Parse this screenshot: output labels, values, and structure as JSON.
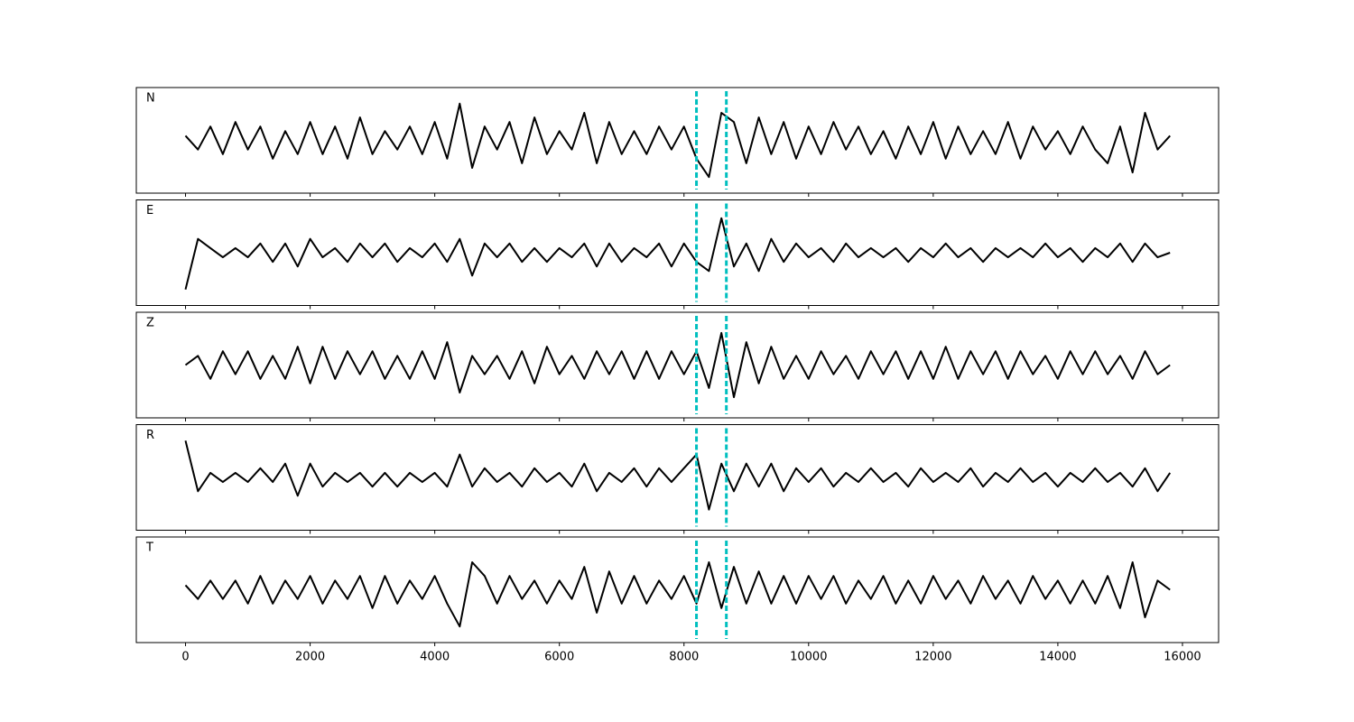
{
  "chart_data": {
    "type": "line",
    "subplots": true,
    "x": [
      0,
      200,
      400,
      600,
      800,
      1000,
      1200,
      1400,
      1600,
      1800,
      2000,
      2200,
      2400,
      2600,
      2800,
      3000,
      3200,
      3400,
      3600,
      3800,
      4000,
      4200,
      4400,
      4600,
      4800,
      5000,
      5200,
      5400,
      5600,
      5800,
      6000,
      6200,
      6400,
      6600,
      6800,
      7000,
      7200,
      7400,
      7600,
      7800,
      8000,
      8200,
      8400,
      8600,
      8800,
      9000,
      9200,
      9400,
      9600,
      9800,
      10000,
      10200,
      10400,
      10600,
      10800,
      11000,
      11200,
      11400,
      11600,
      11800,
      12000,
      12200,
      12400,
      12600,
      12800,
      13000,
      13200,
      13400,
      13600,
      13800,
      14000,
      14200,
      14400,
      14600,
      14800,
      15000,
      15200,
      15400,
      15600,
      15800
    ],
    "series": [
      {
        "name": "N",
        "color": "#000000",
        "values": [
          0.1,
          -0.2,
          0.3,
          -0.3,
          0.4,
          -0.2,
          0.3,
          -0.4,
          0.2,
          -0.3,
          0.4,
          -0.3,
          0.3,
          -0.4,
          0.5,
          -0.3,
          0.2,
          -0.2,
          0.3,
          -0.3,
          0.4,
          -0.4,
          0.8,
          -0.6,
          0.3,
          -0.2,
          0.4,
          -0.5,
          0.5,
          -0.3,
          0.2,
          -0.2,
          0.6,
          -0.5,
          0.4,
          -0.3,
          0.2,
          -0.3,
          0.3,
          -0.2,
          0.3,
          -0.4,
          -0.8,
          0.6,
          0.4,
          -0.5,
          0.5,
          -0.3,
          0.4,
          -0.4,
          0.3,
          -0.3,
          0.4,
          -0.2,
          0.3,
          -0.3,
          0.2,
          -0.4,
          0.3,
          -0.3,
          0.4,
          -0.4,
          0.3,
          -0.3,
          0.2,
          -0.3,
          0.4,
          -0.4,
          0.3,
          -0.2,
          0.2,
          -0.3,
          0.3,
          -0.2,
          -0.5,
          0.3,
          -0.7,
          0.6,
          -0.2,
          0.1
        ]
      },
      {
        "name": "E",
        "color": "#000000",
        "values": [
          -0.8,
          0.3,
          0.1,
          -0.1,
          0.1,
          -0.1,
          0.2,
          -0.2,
          0.2,
          -0.3,
          0.3,
          -0.1,
          0.1,
          -0.2,
          0.2,
          -0.1,
          0.2,
          -0.2,
          0.1,
          -0.1,
          0.2,
          -0.2,
          0.3,
          -0.5,
          0.2,
          -0.1,
          0.2,
          -0.2,
          0.1,
          -0.2,
          0.1,
          -0.1,
          0.2,
          -0.3,
          0.2,
          -0.2,
          0.1,
          -0.1,
          0.2,
          -0.3,
          0.2,
          -0.2,
          -0.4,
          0.75,
          -0.3,
          0.2,
          -0.4,
          0.3,
          -0.2,
          0.2,
          -0.1,
          0.1,
          -0.2,
          0.2,
          -0.1,
          0.1,
          -0.1,
          0.1,
          -0.2,
          0.1,
          -0.1,
          0.2,
          -0.1,
          0.1,
          -0.2,
          0.1,
          -0.1,
          0.1,
          -0.1,
          0.2,
          -0.1,
          0.1,
          -0.2,
          0.1,
          -0.1,
          0.2,
          -0.2,
          0.2,
          -0.1,
          0.0
        ]
      },
      {
        "name": "Z",
        "color": "#000000",
        "values": [
          0.0,
          0.2,
          -0.3,
          0.3,
          -0.2,
          0.3,
          -0.3,
          0.2,
          -0.3,
          0.4,
          -0.4,
          0.4,
          -0.3,
          0.3,
          -0.2,
          0.3,
          -0.3,
          0.2,
          -0.3,
          0.3,
          -0.3,
          0.5,
          -0.6,
          0.2,
          -0.2,
          0.2,
          -0.3,
          0.3,
          -0.4,
          0.4,
          -0.2,
          0.2,
          -0.3,
          0.3,
          -0.2,
          0.3,
          -0.3,
          0.3,
          -0.3,
          0.3,
          -0.2,
          0.3,
          -0.5,
          0.7,
          -0.7,
          0.5,
          -0.4,
          0.4,
          -0.3,
          0.2,
          -0.3,
          0.3,
          -0.2,
          0.2,
          -0.3,
          0.3,
          -0.2,
          0.3,
          -0.3,
          0.3,
          -0.3,
          0.4,
          -0.3,
          0.3,
          -0.2,
          0.3,
          -0.3,
          0.3,
          -0.2,
          0.2,
          -0.3,
          0.3,
          -0.2,
          0.3,
          -0.2,
          0.2,
          -0.3,
          0.3,
          -0.2,
          0.0
        ]
      },
      {
        "name": "R",
        "color": "#000000",
        "values": [
          0.8,
          -0.3,
          0.1,
          -0.1,
          0.1,
          -0.1,
          0.2,
          -0.1,
          0.3,
          -0.4,
          0.3,
          -0.2,
          0.1,
          -0.1,
          0.1,
          -0.2,
          0.1,
          -0.2,
          0.1,
          -0.1,
          0.1,
          -0.2,
          0.5,
          -0.2,
          0.2,
          -0.1,
          0.1,
          -0.2,
          0.2,
          -0.1,
          0.1,
          -0.2,
          0.3,
          -0.3,
          0.1,
          -0.1,
          0.2,
          -0.2,
          0.2,
          -0.1,
          0.2,
          0.5,
          -0.7,
          0.3,
          -0.3,
          0.3,
          -0.2,
          0.3,
          -0.3,
          0.2,
          -0.1,
          0.2,
          -0.2,
          0.1,
          -0.1,
          0.2,
          -0.1,
          0.1,
          -0.2,
          0.2,
          -0.1,
          0.1,
          -0.1,
          0.2,
          -0.2,
          0.1,
          -0.1,
          0.2,
          -0.1,
          0.1,
          -0.2,
          0.1,
          -0.1,
          0.2,
          -0.1,
          0.1,
          -0.2,
          0.2,
          -0.3,
          0.1
        ]
      },
      {
        "name": "T",
        "color": "#000000",
        "values": [
          0.1,
          -0.2,
          0.2,
          -0.2,
          0.2,
          -0.3,
          0.3,
          -0.3,
          0.2,
          -0.2,
          0.3,
          -0.3,
          0.2,
          -0.2,
          0.3,
          -0.4,
          0.3,
          -0.3,
          0.2,
          -0.2,
          0.3,
          -0.3,
          -0.8,
          0.6,
          0.3,
          -0.3,
          0.3,
          -0.2,
          0.2,
          -0.3,
          0.2,
          -0.2,
          0.5,
          -0.5,
          0.4,
          -0.3,
          0.3,
          -0.3,
          0.2,
          -0.2,
          0.3,
          -0.3,
          0.6,
          -0.4,
          0.5,
          -0.3,
          0.4,
          -0.3,
          0.3,
          -0.3,
          0.3,
          -0.2,
          0.3,
          -0.3,
          0.2,
          -0.2,
          0.3,
          -0.3,
          0.2,
          -0.3,
          0.3,
          -0.2,
          0.2,
          -0.3,
          0.3,
          -0.2,
          0.2,
          -0.3,
          0.3,
          -0.2,
          0.2,
          -0.3,
          0.2,
          -0.3,
          0.3,
          -0.4,
          0.6,
          -0.6,
          0.2,
          0.0
        ]
      }
    ],
    "markers": {
      "x": [
        8200,
        8680
      ],
      "color": "#00bfbf",
      "style": "dashed"
    },
    "xlim": [
      -790,
      16580
    ],
    "xticks": [
      0,
      2000,
      4000,
      6000,
      8000,
      10000,
      12000,
      14000,
      16000
    ],
    "ylim": [
      -1.15,
      1.15
    ]
  }
}
